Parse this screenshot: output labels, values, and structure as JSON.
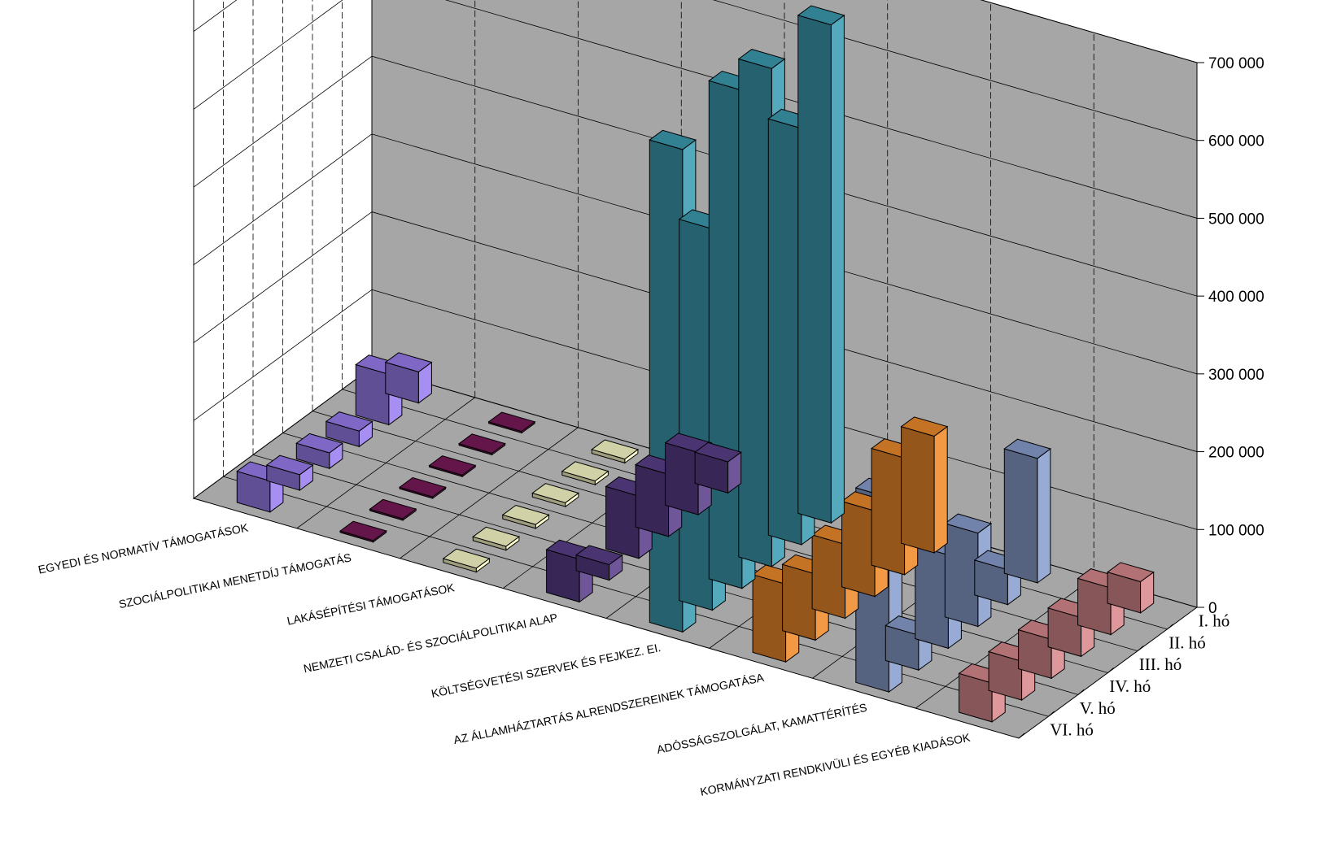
{
  "chart_data": {
    "type": "bar3d",
    "title": "",
    "xlabel": "",
    "ylabel": "",
    "zlim": [
      0,
      700000
    ],
    "z_ticks": [
      "0",
      "100 000",
      "200 000",
      "300 000",
      "400 000",
      "500 000",
      "600 000",
      "700 000"
    ],
    "grid": true,
    "legend": "none",
    "categories": [
      "EGYEDI ÉS NORMATÍV TÁMOGATÁSOK",
      "SZOCIÁLPOLITIKAI MENETDÍJ TÁMOGATÁS",
      "LAKÁSÉPÍTÉSI TÁMOGATÁSOK",
      "NEMZETI CSALÁD- ÉS SZOCIÁLPOLITIKAI ALAP",
      "KÖLTSÉGVETÉSI SZERVEK ÉS FEJKEZ. EI.",
      "AZ ÁLLAMHÁZTARTÁS ALRENDSZEREINEK TÁMOGATÁSA",
      "ADÓSSÁGSZOLGÁLAT, KAMATTÉRÍTÉS",
      "KORMÁNYZATI RENDKIVÜLI ÉS EGYÉB KIADÁSOK"
    ],
    "series": [
      {
        "name": "I. hó",
        "values": [
          40000,
          2000,
          5000,
          40000,
          640000,
          150000,
          160000,
          40000
        ]
      },
      {
        "name": "II. hó",
        "values": [
          65000,
          2000,
          5000,
          80000,
          535000,
          150000,
          45000,
          60000
        ]
      },
      {
        "name": "III. hó",
        "values": [
          20000,
          2000,
          5000,
          80000,
          640000,
          110000,
          120000,
          50000
        ]
      },
      {
        "name": "IV. hó",
        "values": [
          20000,
          2000,
          5000,
          80000,
          640000,
          95000,
          120000,
          50000
        ]
      },
      {
        "name": "V. hó",
        "values": [
          20000,
          2000,
          5000,
          20000,
          490000,
          85000,
          45000,
          50000
        ]
      },
      {
        "name": "VI. hó",
        "values": [
          40000,
          2000,
          5000,
          55000,
          620000,
          100000,
          250000,
          50000
        ]
      }
    ],
    "colors": {
      "wall_back": "#a6a6a6",
      "wall_side": "#ffffff",
      "floor": "#a6a6a6",
      "categories": [
        "#9b7ff0",
        "#7a1a5a",
        "#ffffcc",
        "#5a3f8a",
        "#3d9db3",
        "#ef8b2c",
        "#8aa0cf",
        "#d98a8f"
      ]
    }
  }
}
